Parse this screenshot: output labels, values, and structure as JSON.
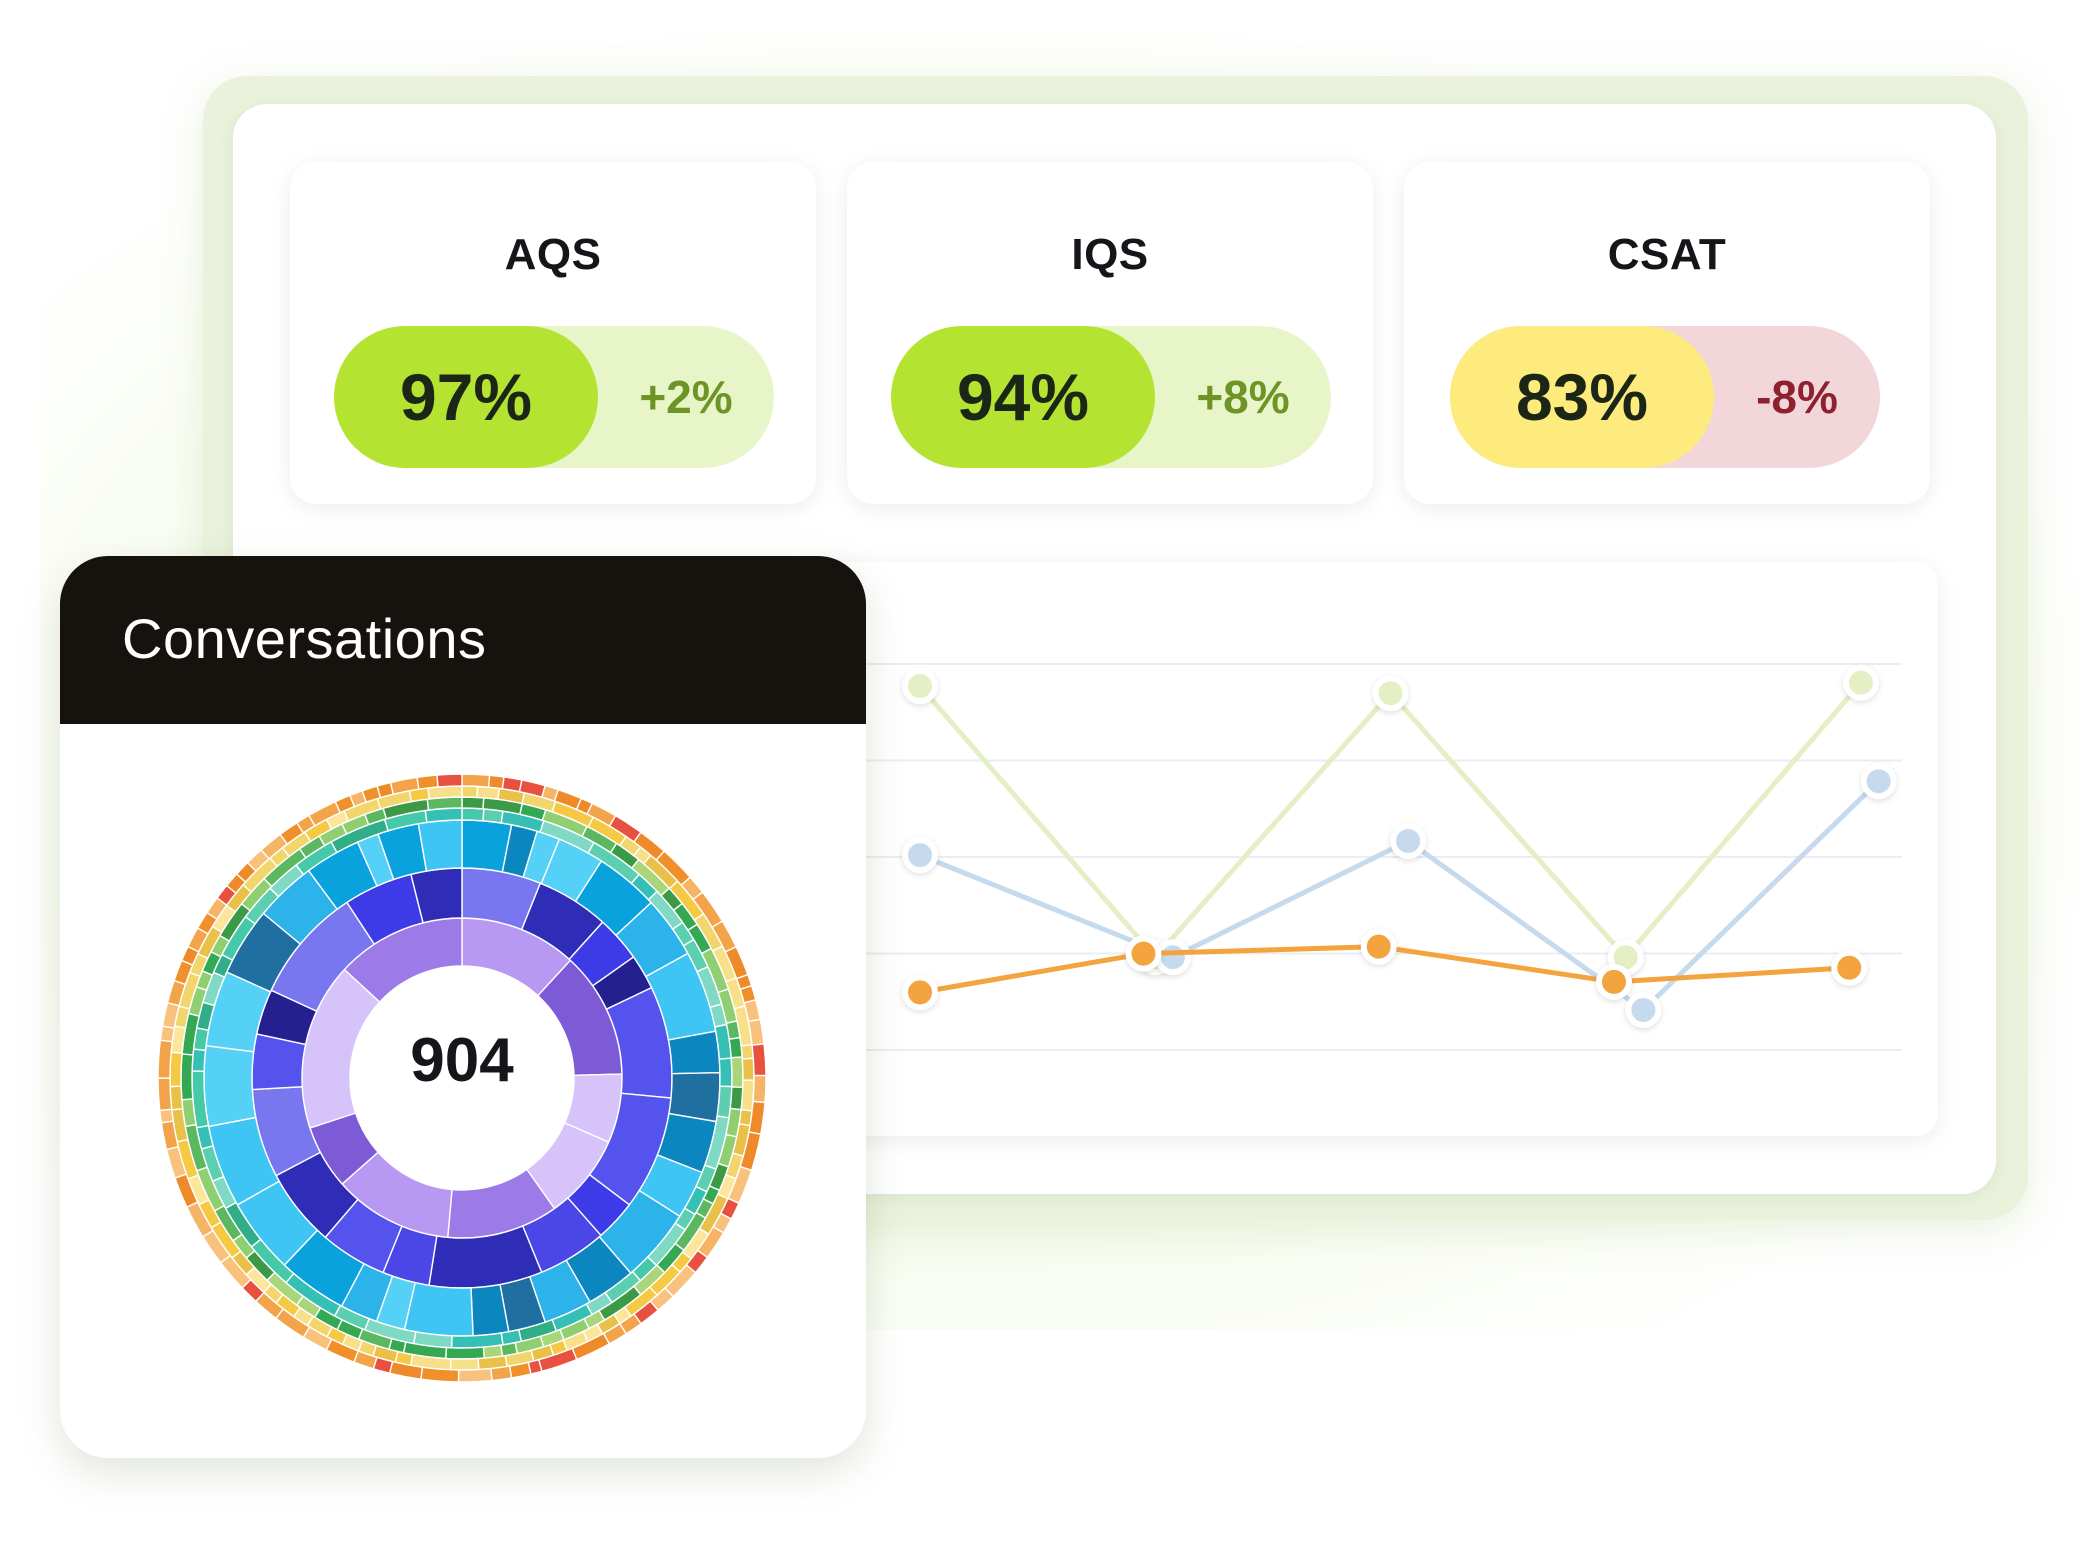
{
  "colors": {
    "green_pill": "#b4e332",
    "green_pill_bg": "#e7f5c9",
    "green_delta": "#6d9424",
    "yellow_pill": "#fdeb7e",
    "red_pill_bg": "#f3d6da",
    "red_delta": "#8e2130",
    "conv_header": "#16130e"
  },
  "metrics": [
    {
      "label": "AQS",
      "value": "97%",
      "delta": "+2%",
      "trend": "up"
    },
    {
      "label": "IQS",
      "value": "94%",
      "delta": "+8%",
      "trend": "up"
    },
    {
      "label": "CSAT",
      "value": "83%",
      "delta": "-8%",
      "trend": "down"
    }
  ],
  "conversations": {
    "title": "Conversations",
    "count": "904"
  },
  "chart_data": {
    "type": "line",
    "grid": true,
    "legend": "none",
    "series": [
      {
        "color": "#e4efc6",
        "values": [
          0.92,
          0.15,
          0.9,
          0.15,
          0.93
        ],
        "x": [
          0,
          2,
          4,
          6,
          8
        ]
      },
      {
        "color": "#c5daed",
        "values": [
          0.44,
          0.15,
          0.48,
          0.0,
          0.65
        ],
        "x": [
          0,
          2.15,
          4.15,
          6.15,
          8.15
        ]
      },
      {
        "color": "#f3a43f",
        "values": [
          0.05,
          0.16,
          0.18,
          0.08,
          0.12
        ],
        "x": [
          0,
          1.9,
          3.9,
          5.9,
          7.9
        ]
      }
    ]
  }
}
